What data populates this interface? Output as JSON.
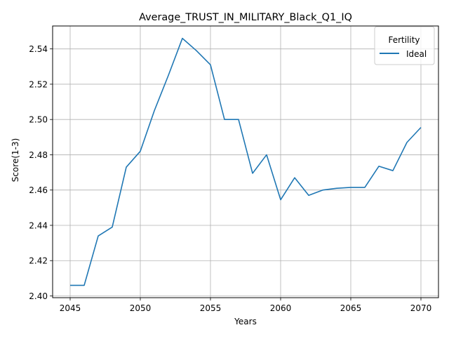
{
  "chart_data": {
    "type": "line",
    "title": "Average_TRUST_IN_MILITARY_Black_Q1_IQ",
    "xlabel": "Years",
    "ylabel": "Score(1-3)",
    "xlim": [
      2043.75,
      2071.25
    ],
    "ylim": [
      2.399,
      2.553
    ],
    "xticks": [
      2045,
      2050,
      2055,
      2060,
      2065,
      2070
    ],
    "yticks": [
      2.4,
      2.42,
      2.44,
      2.46,
      2.48,
      2.5,
      2.52,
      2.54
    ],
    "ytick_labels": [
      "2.40",
      "2.42",
      "2.44",
      "2.46",
      "2.48",
      "2.50",
      "2.52",
      "2.54"
    ],
    "grid": true,
    "legend": {
      "title": "Fertility",
      "placement": "top-right"
    },
    "series": [
      {
        "name": "Ideal",
        "color": "#1f77b4",
        "x": [
          2045,
          2046,
          2047,
          2048,
          2049,
          2050,
          2051,
          2052,
          2053,
          2054,
          2055,
          2056,
          2057,
          2058,
          2059,
          2060,
          2061,
          2062,
          2063,
          2064,
          2065,
          2066,
          2067,
          2068,
          2069,
          2070
        ],
        "values": [
          2.406,
          2.406,
          2.434,
          2.439,
          2.473,
          2.482,
          2.505,
          2.525,
          2.546,
          2.539,
          2.531,
          2.5,
          2.5,
          2.4695,
          2.48,
          2.4545,
          2.467,
          2.457,
          2.46,
          2.461,
          2.4615,
          2.4615,
          2.4735,
          2.471,
          2.487,
          2.4955
        ]
      }
    ]
  }
}
